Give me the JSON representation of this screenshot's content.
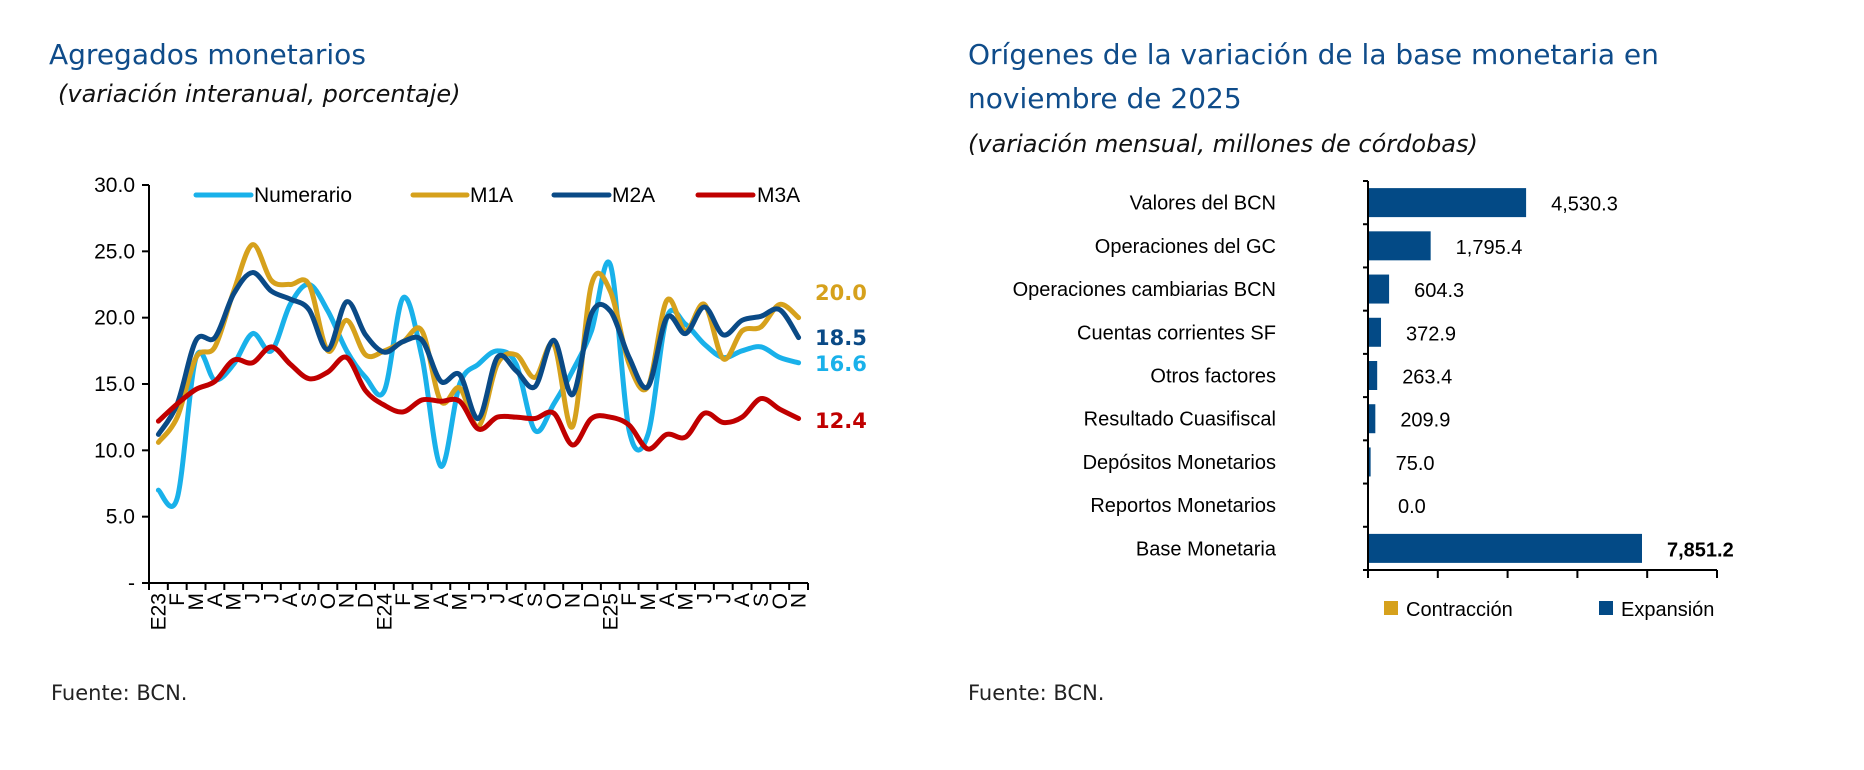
{
  "chart_data": [
    {
      "type": "line",
      "title": "Agregados monetarios",
      "subtitle": "(variación interanual, porcentaje)",
      "source": "Fuente: BCN.",
      "xlabel": "",
      "ylabel": "",
      "ylim": [
        0,
        30
      ],
      "yticks": [
        "-",
        "5.0",
        "10.0",
        "15.0",
        "20.0",
        "25.0",
        "30.0"
      ],
      "legend_position": "top",
      "categories": [
        "E23",
        "F",
        "M",
        "A",
        "M",
        "J",
        "J",
        "A",
        "S",
        "O",
        "N",
        "D",
        "E24",
        "F",
        "M",
        "A",
        "M",
        "J",
        "J",
        "A",
        "S",
        "O",
        "N",
        "D",
        "E25",
        "F",
        "M",
        "A",
        "M",
        "J",
        "J",
        "A",
        "S",
        "O",
        "N"
      ],
      "series": [
        {
          "name": "Numerario",
          "color": "#19b1ea",
          "end_label": "16.6",
          "values": [
            7.0,
            6.4,
            17.0,
            15.3,
            16.5,
            18.8,
            17.5,
            21.0,
            22.5,
            20.5,
            17.5,
            15.5,
            14.5,
            21.5,
            17.0,
            8.8,
            15.0,
            16.5,
            17.5,
            16.5,
            11.5,
            13.5,
            16.0,
            19.0,
            24.0,
            11.5,
            11.2,
            20.0,
            19.5,
            18.0,
            17.0,
            17.5,
            17.8,
            17.0,
            16.6
          ]
        },
        {
          "name": "M1A",
          "color": "#d6a11c",
          "end_label": "20.0",
          "values": [
            10.6,
            12.5,
            17.0,
            17.8,
            22.0,
            25.5,
            22.8,
            22.5,
            22.5,
            17.5,
            19.8,
            17.2,
            17.5,
            18.2,
            19.0,
            13.7,
            14.7,
            11.8,
            16.5,
            17.2,
            15.5,
            18.0,
            11.8,
            22.5,
            22.0,
            16.5,
            14.8,
            21.3,
            19.0,
            21.0,
            16.9,
            19.0,
            19.3,
            21.0,
            20.0
          ]
        },
        {
          "name": "M2A",
          "color": "#0a4a86",
          "end_label": "18.5",
          "values": [
            11.2,
            13.5,
            18.3,
            18.5,
            21.8,
            23.4,
            22.0,
            21.4,
            20.6,
            17.6,
            21.2,
            18.7,
            17.4,
            18.2,
            18.3,
            15.2,
            15.7,
            12.4,
            17.0,
            16.0,
            14.8,
            18.3,
            14.2,
            20.3,
            20.5,
            17.0,
            14.8,
            20.0,
            18.8,
            20.8,
            18.7,
            19.8,
            20.1,
            20.6,
            18.5
          ]
        },
        {
          "name": "M3A",
          "color": "#c00000",
          "end_label": "12.4",
          "values": [
            12.2,
            13.5,
            14.6,
            15.2,
            16.8,
            16.6,
            17.8,
            16.5,
            15.4,
            15.9,
            17.0,
            14.5,
            13.4,
            12.9,
            13.8,
            13.7,
            13.7,
            11.6,
            12.5,
            12.5,
            12.4,
            12.8,
            10.4,
            12.4,
            12.5,
            11.9,
            10.1,
            11.2,
            11.0,
            12.8,
            12.1,
            12.5,
            13.9,
            13.1,
            12.4
          ]
        }
      ]
    },
    {
      "type": "bar",
      "orientation": "horizontal",
      "title_lines": [
        "Orígenes de la variación de la base monetaria en",
        "noviembre de 2025"
      ],
      "subtitle": "(variación mensual, millones de córdobas)",
      "source": "Fuente: BCN.",
      "xlim": [
        0,
        10000
      ],
      "categories": [
        "Valores del BCN",
        "Operaciones del GC",
        "Operaciones cambiarias BCN",
        "Cuentas corrientes SF",
        "Otros factores",
        "Resultado Cuasifiscal",
        "Depósitos Monetarios",
        "Reportos Monetarios",
        "Base Monetaria"
      ],
      "values": [
        4530.3,
        1795.4,
        604.3,
        372.9,
        263.4,
        209.9,
        75.0,
        0.0,
        7851.2
      ],
      "data_labels": [
        "4,530.3",
        "1,795.4",
        "604.3",
        "372.9",
        "263.4",
        "209.9",
        "75.0",
        "0.0",
        "7,851.2"
      ],
      "legend": [
        {
          "name": "Contracción",
          "color": "#d6a11c"
        },
        {
          "name": "Expansión",
          "color": "#034a86"
        }
      ],
      "legend_position": "bottom"
    }
  ]
}
